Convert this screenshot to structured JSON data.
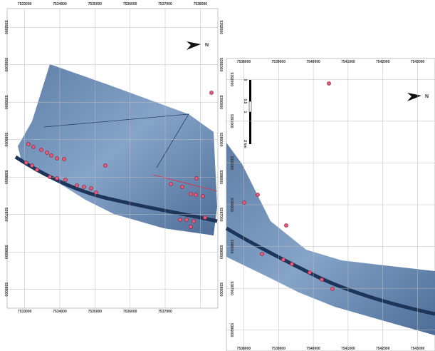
{
  "left_map": {
    "top_labels": [
      "7533000",
      "7534000",
      "7535000",
      "7536000",
      "7537000",
      "7538000"
    ],
    "bottom_labels": [
      "7533000",
      "7534000",
      "7535000",
      "7536000",
      "7537000"
    ],
    "left_labels": [
      "5392000",
      "5391000",
      "5390000",
      "5389000",
      "5388000",
      "5387000",
      "5386000",
      "5385000"
    ],
    "right_labels": [
      "5392000",
      "5391000",
      "5390000",
      "5389000",
      "5388000",
      "5387000",
      "5386000",
      "5385000"
    ],
    "north": "N"
  },
  "right_map": {
    "top_labels": [
      "7538000",
      "7539000",
      "7540000",
      "7541000",
      "7542000",
      "7543000"
    ],
    "bottom_labels": [
      "7538000",
      "7539000",
      "7540000",
      "7541000",
      "7542000",
      "7543000"
    ],
    "left_labels": [
      "5392000",
      "5391000",
      "5390000",
      "5389000",
      "5388000",
      "5387000",
      "5386000"
    ],
    "north": "N",
    "scale": [
      "0",
      "0.5",
      "1",
      "2 km"
    ]
  }
}
